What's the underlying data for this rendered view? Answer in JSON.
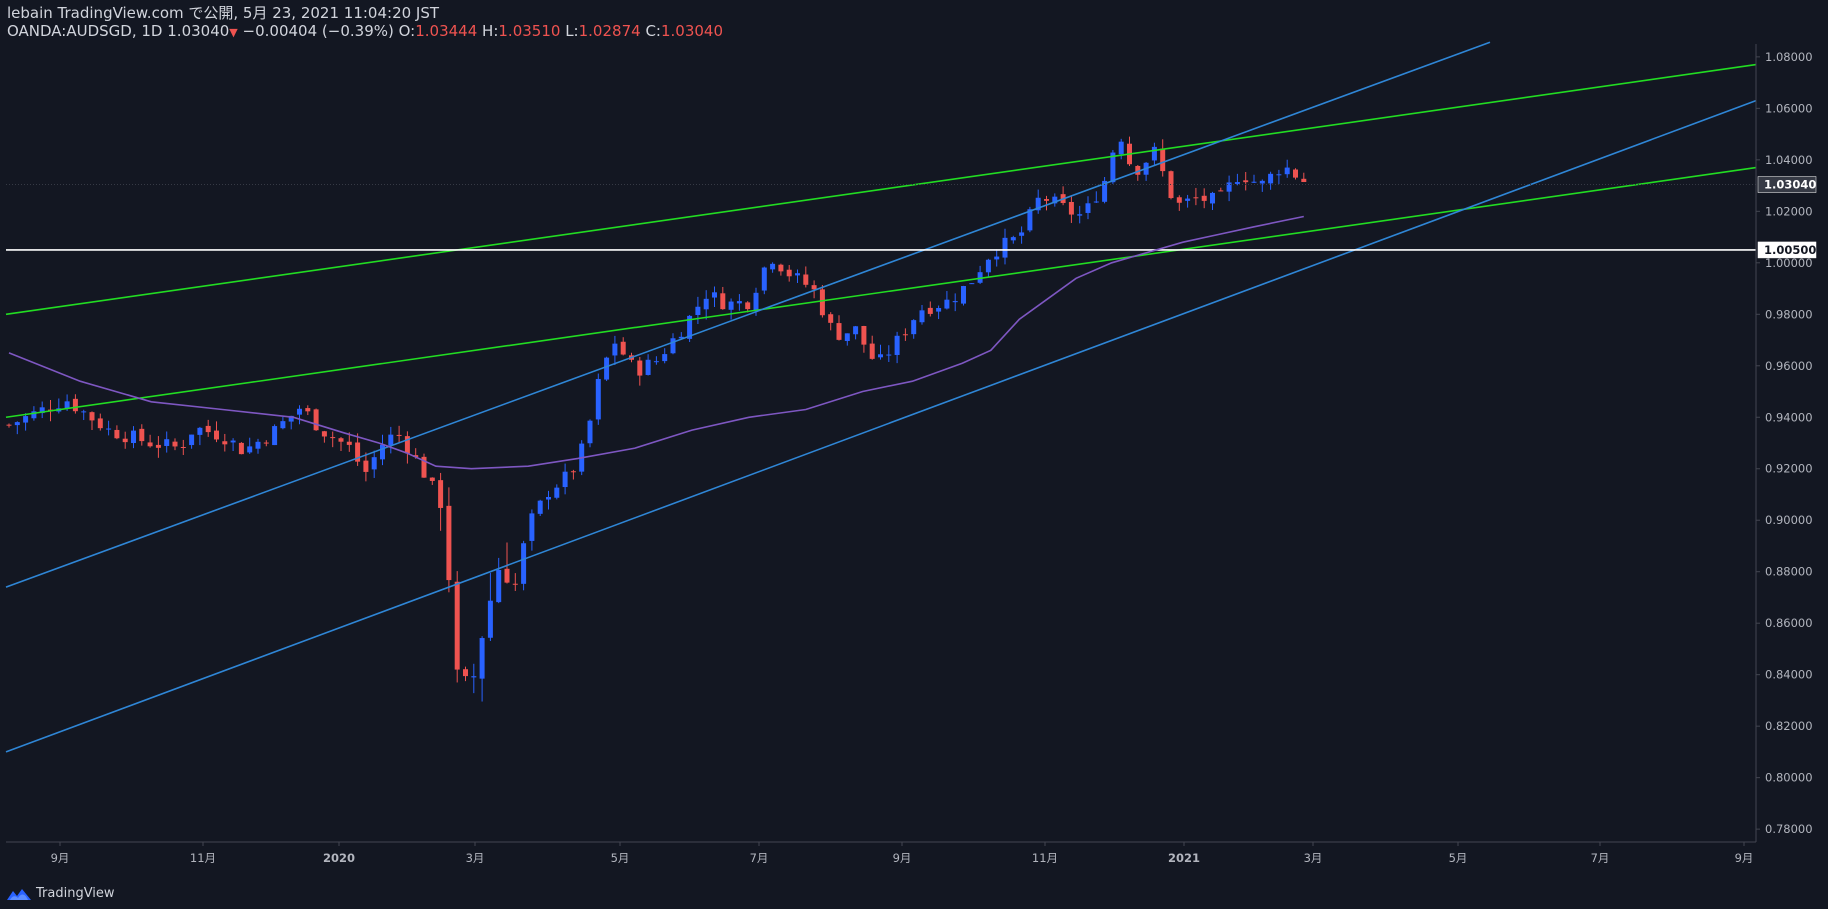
{
  "header": {
    "line1": "lebain TradingView.com で公開, 5月 23, 2021 11:04:20 JST",
    "symbol": "OANDA:AUDSGD, 1D",
    "last": "1.03040",
    "change": "−0.00404 (−0.39%)",
    "o_label": "O:",
    "o_val": "1.03444",
    "h_label": "H:",
    "h_val": "1.03510",
    "l_label": "L:",
    "l_val": "1.02874",
    "c_label": "C:",
    "c_val": "1.03040"
  },
  "footer": {
    "brand": "TradingView"
  },
  "chart_data": {
    "type": "candlestick",
    "symbol": "OANDA:AUDSGD",
    "interval": "1D",
    "ylim": [
      0.775,
      1.085
    ],
    "y_ticks": [
      "0.78000",
      "0.80000",
      "0.82000",
      "0.84000",
      "0.86000",
      "0.88000",
      "0.90000",
      "0.92000",
      "0.94000",
      "0.96000",
      "0.98000",
      "1.00000",
      "1.02000",
      "1.04000",
      "1.06000",
      "1.08000"
    ],
    "x_ticks": [
      "9月",
      "11月",
      "2020",
      "3月",
      "5月",
      "7月",
      "9月",
      "11月",
      "2021",
      "3月",
      "5月",
      "7月",
      "9月"
    ],
    "last_price_label": "1.03040",
    "horizontal_line_label": "1.00500",
    "colors": {
      "up": "#2962ff",
      "down": "#ef5350",
      "ma": "#7e57c2",
      "channel_green": "#22dd22",
      "channel_blue": "#2f86d6",
      "level": "#ffffff"
    },
    "price_path": [
      [
        0,
        0.937
      ],
      [
        8,
        0.947
      ],
      [
        14,
        0.935
      ],
      [
        20,
        0.93
      ],
      [
        24,
        0.928
      ],
      [
        26,
        0.936
      ],
      [
        30,
        0.933
      ],
      [
        33,
        0.927
      ],
      [
        37,
        0.934
      ],
      [
        41,
        0.944
      ],
      [
        44,
        0.935
      ],
      [
        48,
        0.928
      ],
      [
        50,
        0.918
      ],
      [
        53,
        0.932
      ],
      [
        55,
        0.933
      ],
      [
        58,
        0.92
      ],
      [
        61,
        0.905
      ],
      [
        63,
        0.84
      ],
      [
        65,
        0.835
      ],
      [
        67,
        0.862
      ],
      [
        69,
        0.883
      ],
      [
        71,
        0.873
      ],
      [
        73,
        0.898
      ],
      [
        76,
        0.912
      ],
      [
        79,
        0.918
      ],
      [
        81,
        0.93
      ],
      [
        83,
        0.955
      ],
      [
        85,
        0.97
      ],
      [
        88,
        0.958
      ],
      [
        91,
        0.962
      ],
      [
        95,
        0.976
      ],
      [
        98,
        0.988
      ],
      [
        101,
        0.984
      ],
      [
        104,
        0.985
      ],
      [
        107,
        1.003
      ],
      [
        110,
        0.995
      ],
      [
        113,
        0.99
      ],
      [
        116,
        0.972
      ],
      [
        119,
        0.974
      ],
      [
        122,
        0.96
      ],
      [
        125,
        0.97
      ],
      [
        128,
        0.982
      ],
      [
        132,
        0.985
      ],
      [
        135,
        0.992
      ],
      [
        138,
        1.004
      ],
      [
        142,
        1.01
      ],
      [
        145,
        1.026
      ],
      [
        149,
        1.02
      ],
      [
        151,
        1.018
      ],
      [
        154,
        1.032
      ],
      [
        156,
        1.052
      ],
      [
        158,
        1.035
      ],
      [
        161,
        1.043
      ],
      [
        164,
        1.022
      ],
      [
        167,
        1.025
      ],
      [
        170,
        1.024
      ],
      [
        173,
        1.035
      ],
      [
        176,
        1.03
      ],
      [
        179,
        1.038
      ],
      [
        182,
        1.032
      ]
    ],
    "ma_path": [
      [
        0,
        0.965
      ],
      [
        10,
        0.954
      ],
      [
        20,
        0.946
      ],
      [
        30,
        0.943
      ],
      [
        40,
        0.94
      ],
      [
        47,
        0.934
      ],
      [
        52,
        0.93
      ],
      [
        56,
        0.926
      ],
      [
        60,
        0.921
      ],
      [
        65,
        0.92
      ],
      [
        73,
        0.921
      ],
      [
        80,
        0.924
      ],
      [
        88,
        0.928
      ],
      [
        96,
        0.935
      ],
      [
        104,
        0.94
      ],
      [
        112,
        0.943
      ],
      [
        120,
        0.95
      ],
      [
        127,
        0.954
      ],
      [
        134,
        0.961
      ],
      [
        138,
        0.966
      ],
      [
        142,
        0.978
      ],
      [
        146,
        0.986
      ],
      [
        150,
        0.994
      ],
      [
        155,
        1.0
      ],
      [
        160,
        1.004
      ],
      [
        165,
        1.008
      ],
      [
        170,
        1.011
      ],
      [
        175,
        1.014
      ],
      [
        182,
        1.018
      ]
    ]
  }
}
